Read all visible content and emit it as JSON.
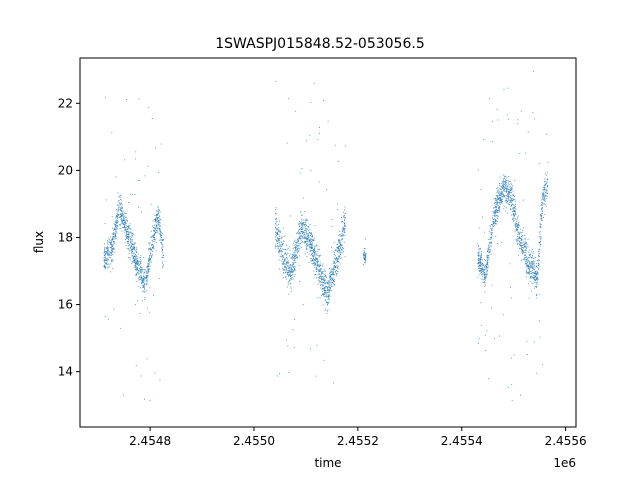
{
  "chart_data": {
    "type": "scatter",
    "title": "1SWASPJ015848.52-053056.5",
    "xlabel": "time",
    "ylabel": "flux",
    "x_offset_label": "1e6",
    "xlim": [
      2454665,
      2455620
    ],
    "ylim": [
      12.35,
      23.35
    ],
    "x_ticks": [
      2454800,
      2455000,
      2455200,
      2455400,
      2455600
    ],
    "x_tick_labels": [
      "2.4548",
      "2.4550",
      "2.4552",
      "2.4554",
      "2.4556"
    ],
    "y_ticks": [
      14,
      16,
      18,
      20,
      22
    ],
    "y_tick_labels": [
      "14",
      "16",
      "18",
      "20",
      "22"
    ],
    "grid": false,
    "marker_color": "#1f77b4",
    "series": [
      {
        "segments": [
          {
            "t_start": 2454710,
            "t_end": 2454825,
            "profile": [
              [
                2454710,
                17.4
              ],
              [
                2454725,
                17.6
              ],
              [
                2454740,
                18.9
              ],
              [
                2454755,
                18.2
              ],
              [
                2454770,
                17.4
              ],
              [
                2454790,
                16.6
              ],
              [
                2454800,
                17.6
              ],
              [
                2454815,
                18.7
              ],
              [
                2454825,
                17.4
              ]
            ],
            "spread": 0.55,
            "outlier_range": [
              13.0,
              23.0
            ]
          },
          {
            "t_start": 2455040,
            "t_end": 2455175,
            "profile": [
              [
                2455040,
                18.3
              ],
              [
                2455055,
                17.5
              ],
              [
                2455070,
                16.9
              ],
              [
                2455090,
                18.3
              ],
              [
                2455105,
                18.0
              ],
              [
                2455120,
                17.3
              ],
              [
                2455140,
                16.3
              ],
              [
                2455160,
                17.4
              ],
              [
                2455175,
                18.5
              ]
            ],
            "spread": 0.6,
            "outlier_range": [
              12.9,
              23.0
            ]
          },
          {
            "t_start": 2455210,
            "t_end": 2455215,
            "profile": [
              [
                2455210,
                17.5
              ],
              [
                2455215,
                17.4
              ]
            ],
            "spread": 0.2,
            "outlier_range": [
              17.0,
              18.0
            ]
          },
          {
            "t_start": 2455430,
            "t_end": 2455565,
            "profile": [
              [
                2455430,
                17.4
              ],
              [
                2455445,
                16.9
              ],
              [
                2455460,
                18.6
              ],
              [
                2455480,
                19.5
              ],
              [
                2455495,
                19.2
              ],
              [
                2455510,
                18.0
              ],
              [
                2455530,
                17.2
              ],
              [
                2455545,
                16.8
              ],
              [
                2455555,
                19.2
              ],
              [
                2455565,
                19.6
              ]
            ],
            "spread": 0.55,
            "outlier_range": [
              12.9,
              23.0
            ]
          }
        ]
      }
    ]
  }
}
